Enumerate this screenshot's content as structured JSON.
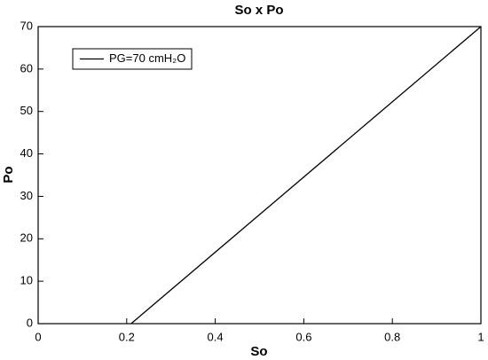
{
  "chart_data": {
    "type": "line",
    "title": "So x Po",
    "xlabel": "So",
    "ylabel": "Po",
    "xlim": [
      0,
      1
    ],
    "ylim": [
      0,
      70
    ],
    "xticks": [
      0,
      0.2,
      0.4,
      0.6,
      0.8,
      1
    ],
    "yticks": [
      0,
      10,
      20,
      30,
      40,
      50,
      60,
      70
    ],
    "series": [
      {
        "name": "PG=70 cmH₂O",
        "color": "#000000",
        "x": [
          0.21,
          1
        ],
        "values": [
          0,
          70
        ]
      }
    ],
    "legend": "upper-left",
    "grid": false
  }
}
